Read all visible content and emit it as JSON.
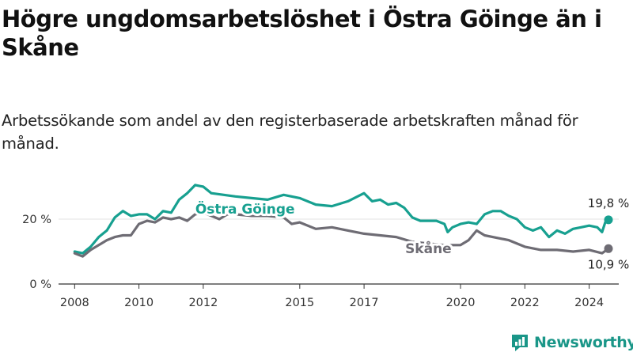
{
  "title": "Högre ungdomsarbetslöshet i Östra Göinge än i Skåne",
  "subtitle": "Arbetssökande som andel av den registerbaserade arbetskraften månad för månad.",
  "brand": "Newsworthy",
  "colors": {
    "ostra_goinge": "#17a090",
    "skane": "#6e6c74",
    "axis": "#333333",
    "grid": "#e3e3e3",
    "brand": "#1a9688"
  },
  "chart_data": {
    "type": "line",
    "title": "Högre ungdomsarbetslöshet i Östra Göinge än i Skåne",
    "xlabel": "",
    "ylabel": "",
    "xlim": [
      2007.5,
      2024.92
    ],
    "ylim": [
      0,
      30
    ],
    "x_ticks": [
      2008,
      2010,
      2012,
      2015,
      2017,
      2020,
      2022,
      2024
    ],
    "y_ticks": [
      {
        "value": 0,
        "label": "0 %"
      },
      {
        "value": 20,
        "label": "20 %"
      }
    ],
    "series": [
      {
        "name": "Östra Göinge",
        "label": "Östra Göinge",
        "color": "#17a090",
        "end_label": "19,8 %",
        "points": [
          [
            2008.0,
            10.0
          ],
          [
            2008.25,
            9.5
          ],
          [
            2008.5,
            11.5
          ],
          [
            2008.75,
            14.5
          ],
          [
            2009.0,
            16.5
          ],
          [
            2009.25,
            20.5
          ],
          [
            2009.5,
            22.5
          ],
          [
            2009.75,
            21.0
          ],
          [
            2010.0,
            21.5
          ],
          [
            2010.25,
            21.5
          ],
          [
            2010.5,
            20.0
          ],
          [
            2010.75,
            22.5
          ],
          [
            2011.0,
            22.0
          ],
          [
            2011.25,
            26.0
          ],
          [
            2011.5,
            28.0
          ],
          [
            2011.75,
            30.5
          ],
          [
            2012.0,
            30.0
          ],
          [
            2012.25,
            28.0
          ],
          [
            2013.0,
            27.0
          ],
          [
            2013.5,
            26.5
          ],
          [
            2014.0,
            26.0
          ],
          [
            2014.5,
            27.5
          ],
          [
            2015.0,
            26.5
          ],
          [
            2015.5,
            24.5
          ],
          [
            2016.0,
            24.0
          ],
          [
            2016.5,
            25.5
          ],
          [
            2017.0,
            28.0
          ],
          [
            2017.25,
            25.5
          ],
          [
            2017.5,
            26.0
          ],
          [
            2017.75,
            24.5
          ],
          [
            2018.0,
            25.0
          ],
          [
            2018.25,
            23.5
          ],
          [
            2018.5,
            20.5
          ],
          [
            2018.75,
            19.5
          ],
          [
            2019.0,
            19.5
          ],
          [
            2019.25,
            19.5
          ],
          [
            2019.5,
            18.5
          ],
          [
            2019.6,
            16.0
          ],
          [
            2019.75,
            17.5
          ],
          [
            2020.0,
            18.5
          ],
          [
            2020.25,
            19.0
          ],
          [
            2020.5,
            18.5
          ],
          [
            2020.75,
            21.5
          ],
          [
            2021.0,
            22.5
          ],
          [
            2021.25,
            22.5
          ],
          [
            2021.5,
            21.0
          ],
          [
            2021.75,
            20.0
          ],
          [
            2022.0,
            17.5
          ],
          [
            2022.25,
            16.5
          ],
          [
            2022.5,
            17.5
          ],
          [
            2022.75,
            14.5
          ],
          [
            2023.0,
            16.5
          ],
          [
            2023.25,
            15.5
          ],
          [
            2023.5,
            17.0
          ],
          [
            2023.75,
            17.5
          ],
          [
            2024.0,
            18.0
          ],
          [
            2024.25,
            17.5
          ],
          [
            2024.4,
            16.0
          ],
          [
            2024.5,
            19.0
          ],
          [
            2024.6,
            19.8
          ]
        ]
      },
      {
        "name": "Skåne",
        "label": "Skåne",
        "color": "#6e6c74",
        "end_label": "10,9 %",
        "points": [
          [
            2008.0,
            9.5
          ],
          [
            2008.25,
            8.5
          ],
          [
            2008.5,
            10.5
          ],
          [
            2008.75,
            12.0
          ],
          [
            2009.0,
            13.5
          ],
          [
            2009.25,
            14.5
          ],
          [
            2009.5,
            15.0
          ],
          [
            2009.75,
            15.0
          ],
          [
            2010.0,
            18.5
          ],
          [
            2010.25,
            19.5
          ],
          [
            2010.5,
            19.0
          ],
          [
            2010.75,
            20.5
          ],
          [
            2011.0,
            20.0
          ],
          [
            2011.25,
            20.5
          ],
          [
            2011.5,
            19.5
          ],
          [
            2011.75,
            21.5
          ],
          [
            2012.0,
            22.0
          ],
          [
            2012.25,
            21.0
          ],
          [
            2012.5,
            20.0
          ],
          [
            2012.75,
            21.5
          ],
          [
            2013.0,
            21.5
          ],
          [
            2013.5,
            21.0
          ],
          [
            2014.0,
            21.0
          ],
          [
            2014.5,
            20.5
          ],
          [
            2014.75,
            18.5
          ],
          [
            2015.0,
            19.0
          ],
          [
            2015.5,
            17.0
          ],
          [
            2016.0,
            17.5
          ],
          [
            2016.5,
            16.5
          ],
          [
            2017.0,
            15.5
          ],
          [
            2017.5,
            15.0
          ],
          [
            2018.0,
            14.5
          ],
          [
            2018.5,
            13.0
          ],
          [
            2019.0,
            12.5
          ],
          [
            2019.5,
            12.0
          ],
          [
            2020.0,
            12.0
          ],
          [
            2020.25,
            13.5
          ],
          [
            2020.5,
            16.5
          ],
          [
            2020.75,
            15.0
          ],
          [
            2021.0,
            14.5
          ],
          [
            2021.5,
            13.5
          ],
          [
            2022.0,
            11.5
          ],
          [
            2022.5,
            10.5
          ],
          [
            2023.0,
            10.5
          ],
          [
            2023.5,
            10.0
          ],
          [
            2024.0,
            10.5
          ],
          [
            2024.4,
            9.5
          ],
          [
            2024.6,
            10.9
          ]
        ]
      }
    ],
    "annotations": [
      {
        "series": "Östra Göinge",
        "text": "19,8 %"
      },
      {
        "series": "Skåne",
        "text": "10,9 %"
      }
    ]
  }
}
